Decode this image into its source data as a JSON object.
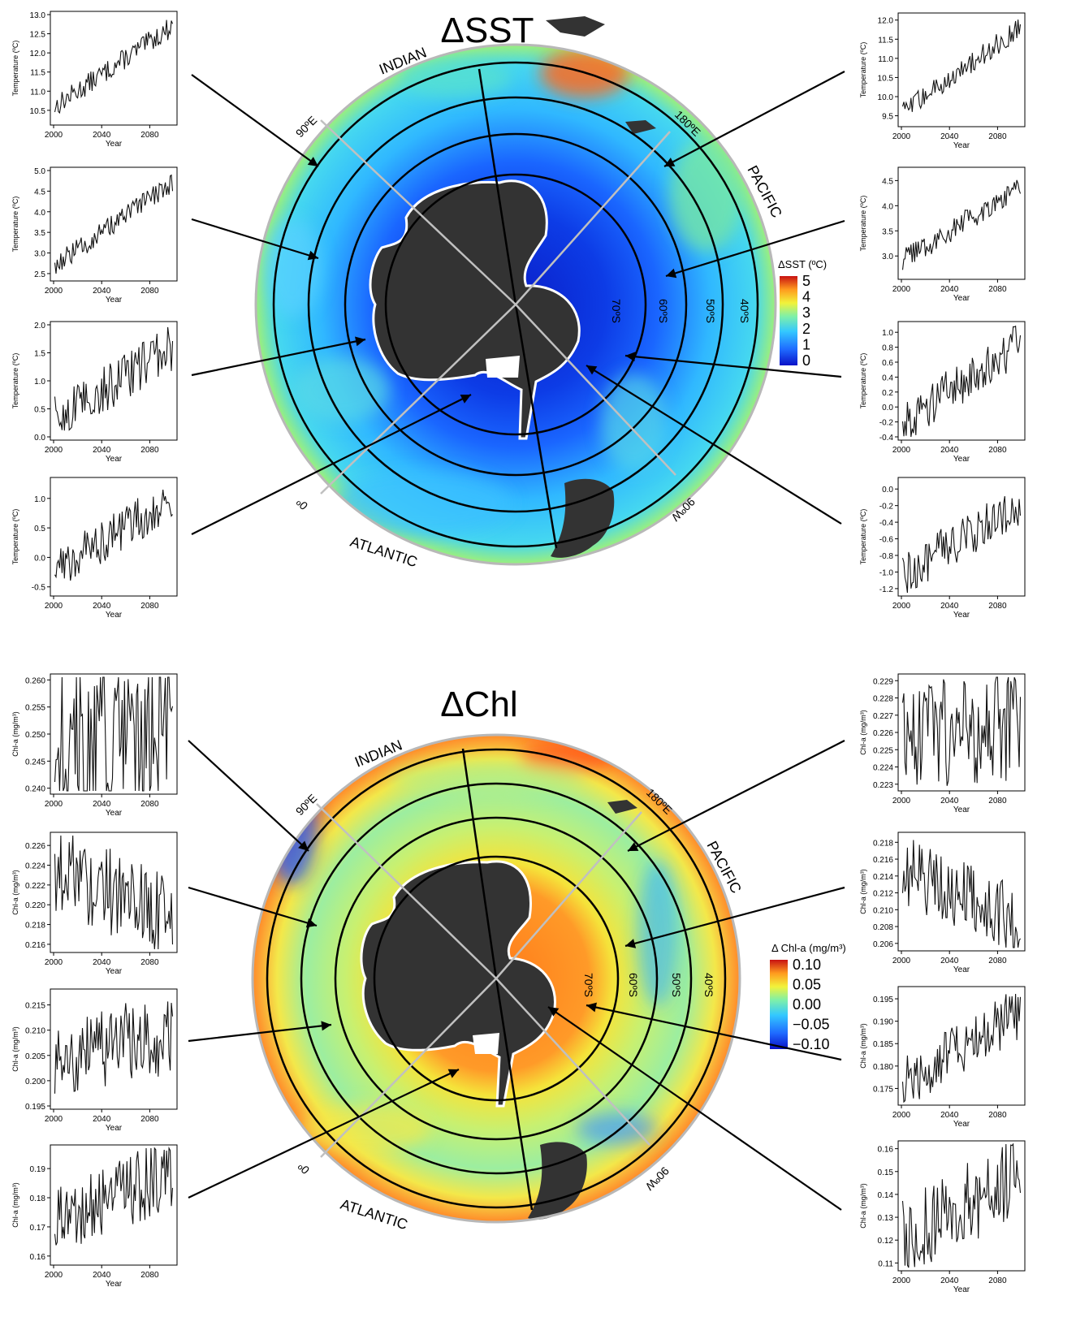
{
  "sst_panel": {
    "title": "ΔSST",
    "ocean_labels": [
      "INDIAN",
      "PACIFIC",
      "ATLANTIC"
    ],
    "lon_labels": [
      "90ºE",
      "180ºE",
      "90ºW",
      "0º"
    ],
    "lat_labels": [
      "70ºS",
      "60ºS",
      "50ºS",
      "40ºS"
    ],
    "colorbar": {
      "title": "ΔSST (ºC)",
      "ticks": [
        "5",
        "4",
        "3",
        "2",
        "1",
        "0"
      ],
      "range": [
        0,
        5
      ],
      "colors": [
        "#0a12c8",
        "#1f6bff",
        "#33c8ff",
        "#7ff0a8",
        "#f2f23a",
        "#ff9a1e",
        "#c81212"
      ]
    }
  },
  "chl_panel": {
    "title": "ΔChl",
    "ocean_labels": [
      "INDIAN",
      "PACIFIC",
      "ATLANTIC"
    ],
    "lon_labels": [
      "90ºE",
      "180ºE",
      "90ºW",
      "0º"
    ],
    "lat_labels": [
      "70ºS",
      "60ºS",
      "50ºS",
      "40ºS"
    ],
    "colorbar": {
      "title": "Δ Chl-a (mg/m³)",
      "ticks": [
        "0.10",
        "0.05",
        "0.00",
        "−0.05",
        "−0.10"
      ],
      "range": [
        -0.12,
        0.12
      ],
      "colors": [
        "#0a12c8",
        "#1f6bff",
        "#33c8ff",
        "#7ff0a8",
        "#f2f23a",
        "#ff9a1e",
        "#c81212"
      ]
    }
  },
  "chart_data": [
    {
      "type": "line",
      "id": "sst-left-1",
      "xlabel": "Year",
      "ylabel": "Temperature (ºC)",
      "xlim": [
        2000,
        2100
      ],
      "ylim": [
        10.2,
        13.0
      ],
      "xticks": [
        "2000",
        "2040",
        "2080"
      ],
      "yticks": [
        "10.5",
        "11.0",
        "11.5",
        "12.0",
        "12.5",
        "13.0"
      ],
      "start": 10.6,
      "end": 12.7,
      "noise": 0.28
    },
    {
      "type": "line",
      "id": "sst-left-2",
      "xlabel": "Year",
      "ylabel": "Temperature (ºC)",
      "xlim": [
        2000,
        2100
      ],
      "ylim": [
        2.4,
        5.0
      ],
      "xticks": [
        "2000",
        "2040",
        "2080"
      ],
      "yticks": [
        "2.5",
        "3.0",
        "3.5",
        "4.0",
        "4.5",
        "5.0"
      ],
      "start": 2.7,
      "end": 4.7,
      "noise": 0.26
    },
    {
      "type": "line",
      "id": "sst-left-3",
      "xlabel": "Year",
      "ylabel": "Temperature (ºC)",
      "xlim": [
        2000,
        2100
      ],
      "ylim": [
        0.0,
        2.0
      ],
      "xticks": [
        "2000",
        "2040",
        "2080"
      ],
      "yticks": [
        "0.0",
        "0.5",
        "1.0",
        "1.5",
        "2.0"
      ],
      "start": 0.3,
      "end": 1.6,
      "noise": 0.42
    },
    {
      "type": "line",
      "id": "sst-left-4",
      "xlabel": "Year",
      "ylabel": "Temperature (ºC)",
      "xlim": [
        2000,
        2100
      ],
      "ylim": [
        -0.6,
        1.3
      ],
      "xticks": [
        "2000",
        "2040",
        "2080"
      ],
      "yticks": [
        "-0.5",
        "0.0",
        "0.5",
        "1.0"
      ],
      "start": -0.2,
      "end": 1.0,
      "noise": 0.38
    },
    {
      "type": "line",
      "id": "sst-right-1",
      "xlabel": "Year",
      "ylabel": "Temperature (ºC)",
      "xlim": [
        2000,
        2100
      ],
      "ylim": [
        9.3,
        12.1
      ],
      "xticks": [
        "2000",
        "2040",
        "2080"
      ],
      "yticks": [
        "9.5",
        "10.0",
        "10.5",
        "11.0",
        "11.5",
        "12.0"
      ],
      "start": 9.6,
      "end": 11.8,
      "noise": 0.28
    },
    {
      "type": "line",
      "id": "sst-right-2",
      "xlabel": "Year",
      "ylabel": "Temperature (ºC)",
      "xlim": [
        2000,
        2100
      ],
      "ylim": [
        2.6,
        4.7
      ],
      "xticks": [
        "2000",
        "2040",
        "2080"
      ],
      "yticks": [
        "3.0",
        "3.5",
        "4.0",
        "4.5"
      ],
      "start": 2.9,
      "end": 4.4,
      "noise": 0.24
    },
    {
      "type": "line",
      "id": "sst-right-3",
      "xlabel": "Year",
      "ylabel": "Temperature (ºC)",
      "xlim": [
        2000,
        2100
      ],
      "ylim": [
        -0.4,
        1.1
      ],
      "xticks": [
        "2000",
        "2040",
        "2080"
      ],
      "yticks": [
        "-0.4",
        "-0.2",
        "0.0",
        "0.2",
        "0.4",
        "0.6",
        "0.8",
        "1.0"
      ],
      "start": -0.2,
      "end": 0.85,
      "noise": 0.3
    },
    {
      "type": "line",
      "id": "sst-right-4",
      "xlabel": "Year",
      "ylabel": "Temperature (ºC)",
      "xlim": [
        2000,
        2100
      ],
      "ylim": [
        -1.25,
        0.1
      ],
      "xticks": [
        "2000",
        "2040",
        "2080"
      ],
      "yticks": [
        "-1.2",
        "-1.0",
        "-0.8",
        "-0.6",
        "-0.4",
        "-0.2",
        "0.0"
      ],
      "start": -1.05,
      "end": -0.15,
      "noise": 0.28
    },
    {
      "type": "line",
      "id": "chl-left-1",
      "xlabel": "Year",
      "ylabel": "Chl-a (mg/m³)",
      "xlim": [
        2000,
        2100
      ],
      "ylim": [
        0.2395,
        0.2605
      ],
      "xticks": [
        "2000",
        "2040",
        "2080"
      ],
      "yticks": [
        "0.240",
        "0.245",
        "0.250",
        "0.255",
        "0.260"
      ],
      "start": 0.2485,
      "end": 0.2485,
      "noise": 0.016
    },
    {
      "type": "line",
      "id": "chl-left-2",
      "xlabel": "Year",
      "ylabel": "Chl-a (mg/m³)",
      "xlim": [
        2000,
        2100
      ],
      "ylim": [
        0.2155,
        0.227
      ],
      "xticks": [
        "2000",
        "2040",
        "2080"
      ],
      "yticks": [
        "0.216",
        "0.218",
        "0.220",
        "0.222",
        "0.224",
        "0.226"
      ],
      "start": 0.2238,
      "end": 0.2185,
      "noise": 0.0045
    },
    {
      "type": "line",
      "id": "chl-left-3",
      "xlabel": "Year",
      "ylabel": "Chl-a (mg/m³)",
      "xlim": [
        2000,
        2100
      ],
      "ylim": [
        0.195,
        0.2175
      ],
      "xticks": [
        "2000",
        "2040",
        "2080"
      ],
      "yticks": [
        "0.195",
        "0.200",
        "0.205",
        "0.210",
        "0.215"
      ],
      "start": 0.205,
      "end": 0.209,
      "noise": 0.008
    },
    {
      "type": "line",
      "id": "chl-left-4",
      "xlabel": "Year",
      "ylabel": "Chl-a (mg/m³)",
      "xlim": [
        2000,
        2100
      ],
      "ylim": [
        0.158,
        0.197
      ],
      "xticks": [
        "2000",
        "2040",
        "2080"
      ],
      "yticks": [
        "0.16",
        "0.17",
        "0.18",
        "0.19"
      ],
      "start": 0.17,
      "end": 0.19,
      "noise": 0.013
    },
    {
      "type": "line",
      "id": "chl-right-1",
      "xlabel": "Year",
      "ylabel": "Chl-a (mg/m³)",
      "xlim": [
        2000,
        2100
      ],
      "ylim": [
        0.2228,
        0.2292
      ],
      "xticks": [
        "2000",
        "2040",
        "2080"
      ],
      "yticks": [
        "0.223",
        "0.224",
        "0.225",
        "0.226",
        "0.227",
        "0.228",
        "0.229"
      ],
      "start": 0.2259,
      "end": 0.2264,
      "noise": 0.0032
    },
    {
      "type": "line",
      "id": "chl-right-2",
      "xlabel": "Year",
      "ylabel": "Chl-a (mg/m³)",
      "xlim": [
        2000,
        2100
      ],
      "ylim": [
        0.2055,
        0.2188
      ],
      "xticks": [
        "2000",
        "2040",
        "2080"
      ],
      "yticks": [
        "0.206",
        "0.208",
        "0.210",
        "0.212",
        "0.214",
        "0.216",
        "0.218"
      ],
      "start": 0.2148,
      "end": 0.2085,
      "noise": 0.0042
    },
    {
      "type": "line",
      "id": "chl-right-3",
      "xlabel": "Year",
      "ylabel": "Chl-a (mg/m³)",
      "xlim": [
        2000,
        2100
      ],
      "ylim": [
        0.172,
        0.197
      ],
      "xticks": [
        "2000",
        "2040",
        "2080"
      ],
      "yticks": [
        "0.175",
        "0.180",
        "0.185",
        "0.190",
        "0.195"
      ],
      "start": 0.176,
      "end": 0.192,
      "noise": 0.006
    },
    {
      "type": "line",
      "id": "chl-right-4",
      "xlabel": "Year",
      "ylabel": "Chl-a (mg/m³)",
      "xlim": [
        2000,
        2100
      ],
      "ylim": [
        0.108,
        0.162
      ],
      "xticks": [
        "2000",
        "2040",
        "2080"
      ],
      "yticks": [
        "0.11",
        "0.12",
        "0.13",
        "0.14",
        "0.15",
        "0.16"
      ],
      "start": 0.122,
      "end": 0.148,
      "noise": 0.018
    }
  ]
}
